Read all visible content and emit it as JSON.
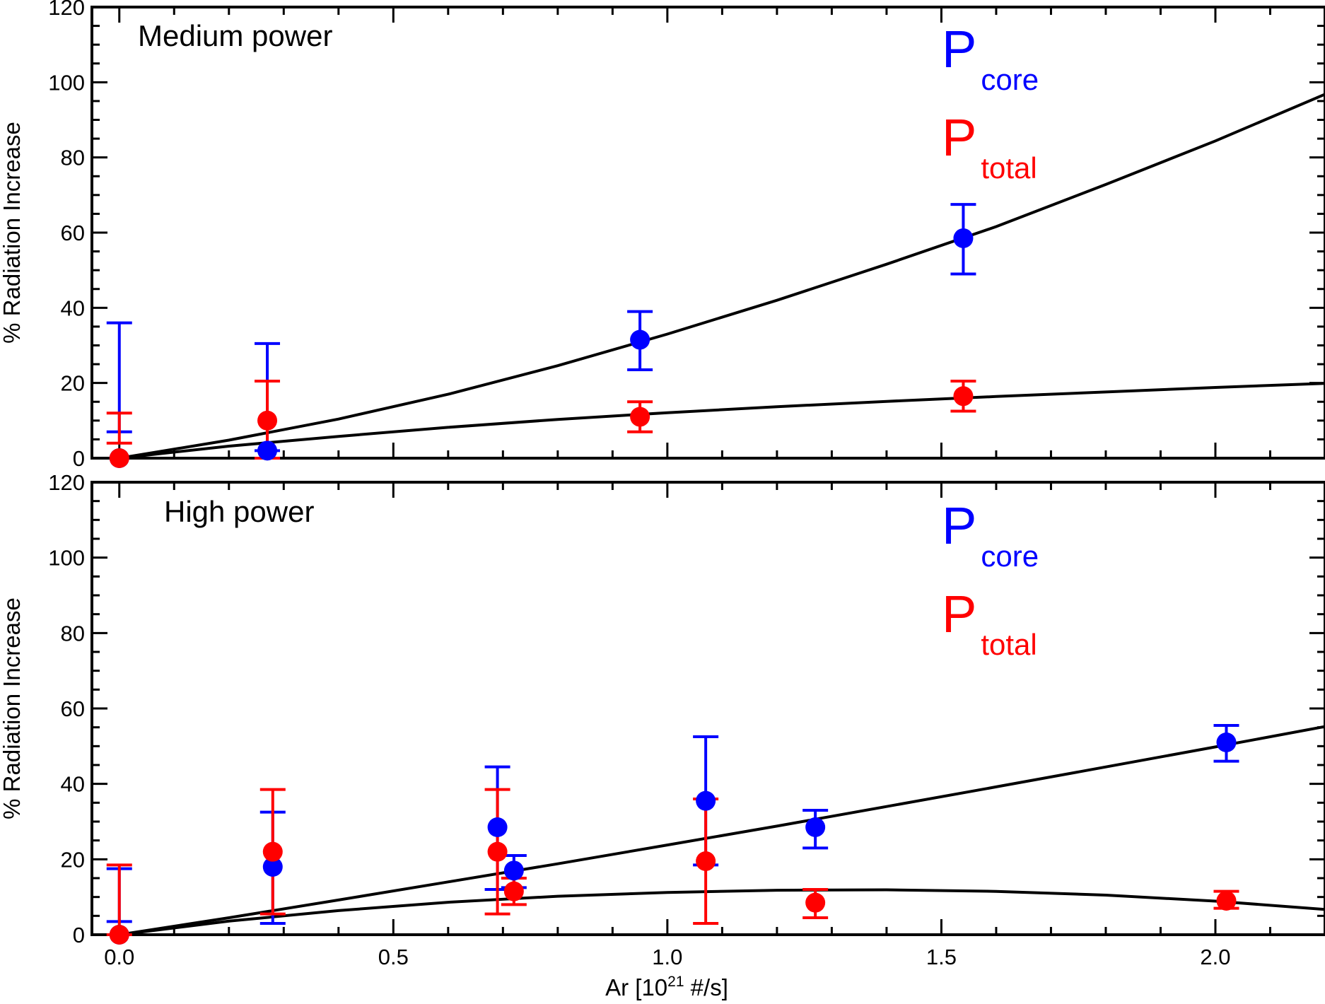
{
  "colors": {
    "core": "#0000ff",
    "total": "#ff0000",
    "fit": "#000000"
  },
  "chart_data": [
    {
      "type": "scatter",
      "title": "Medium power",
      "xlabel": "Ar [10",
      "xlabel_sup": "21",
      "xlabel_tail": " #/s]",
      "ylabel": "% Radiation Increase",
      "xlim": [
        -0.05,
        2.2
      ],
      "ylim": [
        0,
        120
      ],
      "xticks": [
        "0.0",
        "0.5",
        "1.0",
        "1.5",
        "2.0"
      ],
      "xtick_values": [
        0.0,
        0.5,
        1.0,
        1.5,
        2.0
      ],
      "yticks": [
        "0",
        "20",
        "40",
        "60",
        "80",
        "100",
        "120"
      ],
      "ytick_values": [
        0,
        20,
        40,
        60,
        80,
        100,
        120
      ],
      "legend": [
        {
          "symbol": "P",
          "sub": "core",
          "color": "#0000ff"
        },
        {
          "symbol": "P",
          "sub": "total",
          "color": "#ff0000"
        }
      ],
      "series": [
        {
          "name": "core",
          "color": "#0000ff",
          "x": [
            0.0,
            0.27,
            0.95,
            1.54
          ],
          "y": [
            0.0,
            2.0,
            31.5,
            58.5
          ],
          "err_low": [
            7.0,
            2.0,
            23.5,
            49.0
          ],
          "err_high": [
            36.0,
            30.5,
            39.0,
            67.5
          ]
        },
        {
          "name": "total",
          "color": "#ff0000",
          "x": [
            0.0,
            0.27,
            0.95,
            1.54
          ],
          "y": [
            0.0,
            10.0,
            11.0,
            16.5
          ],
          "err_low": [
            4.0,
            0.0,
            7.0,
            12.5
          ],
          "err_high": [
            12.0,
            20.5,
            15.0,
            20.5
          ]
        }
      ],
      "fits": [
        {
          "x": [
            0.0,
            0.2,
            0.4,
            0.6,
            0.8,
            1.0,
            1.2,
            1.4,
            1.6,
            1.8,
            2.0,
            2.2
          ],
          "y": [
            0.0,
            4.8,
            10.4,
            17.0,
            24.6,
            33.0,
            42.0,
            51.6,
            61.6,
            72.8,
            84.4,
            96.8
          ]
        },
        {
          "x": [
            0.0,
            0.2,
            0.4,
            0.6,
            0.8,
            1.0,
            1.2,
            1.4,
            1.6,
            1.8,
            2.0,
            2.2
          ],
          "y": [
            0.0,
            3.2,
            5.8,
            8.2,
            10.3,
            12.1,
            13.7,
            15.1,
            16.4,
            17.6,
            18.8,
            19.9
          ]
        }
      ]
    },
    {
      "type": "scatter",
      "title": "High power",
      "xlabel": "Ar [10",
      "xlabel_sup": "21",
      "xlabel_tail": " #/s]",
      "ylabel": "% Radiation Increase",
      "xlim": [
        -0.05,
        2.2
      ],
      "ylim": [
        0,
        120
      ],
      "xticks": [
        "0.0",
        "0.5",
        "1.0",
        "1.5",
        "2.0"
      ],
      "xtick_values": [
        0.0,
        0.5,
        1.0,
        1.5,
        2.0
      ],
      "yticks": [
        "0",
        "20",
        "40",
        "60",
        "80",
        "100",
        "120"
      ],
      "ytick_values": [
        0,
        20,
        40,
        60,
        80,
        100,
        120
      ],
      "legend": [
        {
          "symbol": "P",
          "sub": "core",
          "color": "#0000ff"
        },
        {
          "symbol": "P",
          "sub": "total",
          "color": "#ff0000"
        }
      ],
      "series": [
        {
          "name": "core",
          "color": "#0000ff",
          "x": [
            0.0,
            0.28,
            0.69,
            0.72,
            1.07,
            1.27,
            2.02
          ],
          "y": [
            0.0,
            18.0,
            28.5,
            17.0,
            35.5,
            28.5,
            51.0
          ],
          "err_low": [
            3.5,
            3.0,
            12.0,
            12.5,
            18.5,
            23.0,
            46.0
          ],
          "err_high": [
            17.5,
            32.5,
            44.5,
            21.0,
            52.5,
            33.0,
            55.5
          ]
        },
        {
          "name": "total",
          "color": "#ff0000",
          "x": [
            0.0,
            0.28,
            0.69,
            0.72,
            1.07,
            1.27,
            2.02
          ],
          "y": [
            0.0,
            22.0,
            22.0,
            11.5,
            19.5,
            8.5,
            9.0
          ],
          "err_low": [
            0.0,
            5.5,
            5.5,
            8.0,
            3.0,
            4.5,
            7.0
          ],
          "err_high": [
            18.5,
            38.5,
            38.5,
            15.0,
            36.0,
            12.0,
            11.5
          ]
        }
      ],
      "fits": [
        {
          "x": [
            0.0,
            0.2,
            0.4,
            0.6,
            0.8,
            1.0,
            1.2,
            1.4,
            1.6,
            1.8,
            2.0,
            2.2
          ],
          "y": [
            0.0,
            4.5,
            9.2,
            14.0,
            18.8,
            23.8,
            28.8,
            34.0,
            39.2,
            44.5,
            49.8,
            55.2
          ]
        },
        {
          "x": [
            0.0,
            0.2,
            0.4,
            0.6,
            0.8,
            1.0,
            1.2,
            1.4,
            1.6,
            1.8,
            2.0,
            2.2
          ],
          "y": [
            0.0,
            3.6,
            6.4,
            8.6,
            10.2,
            11.2,
            11.8,
            11.9,
            11.5,
            10.5,
            8.9,
            6.7
          ]
        }
      ]
    }
  ]
}
